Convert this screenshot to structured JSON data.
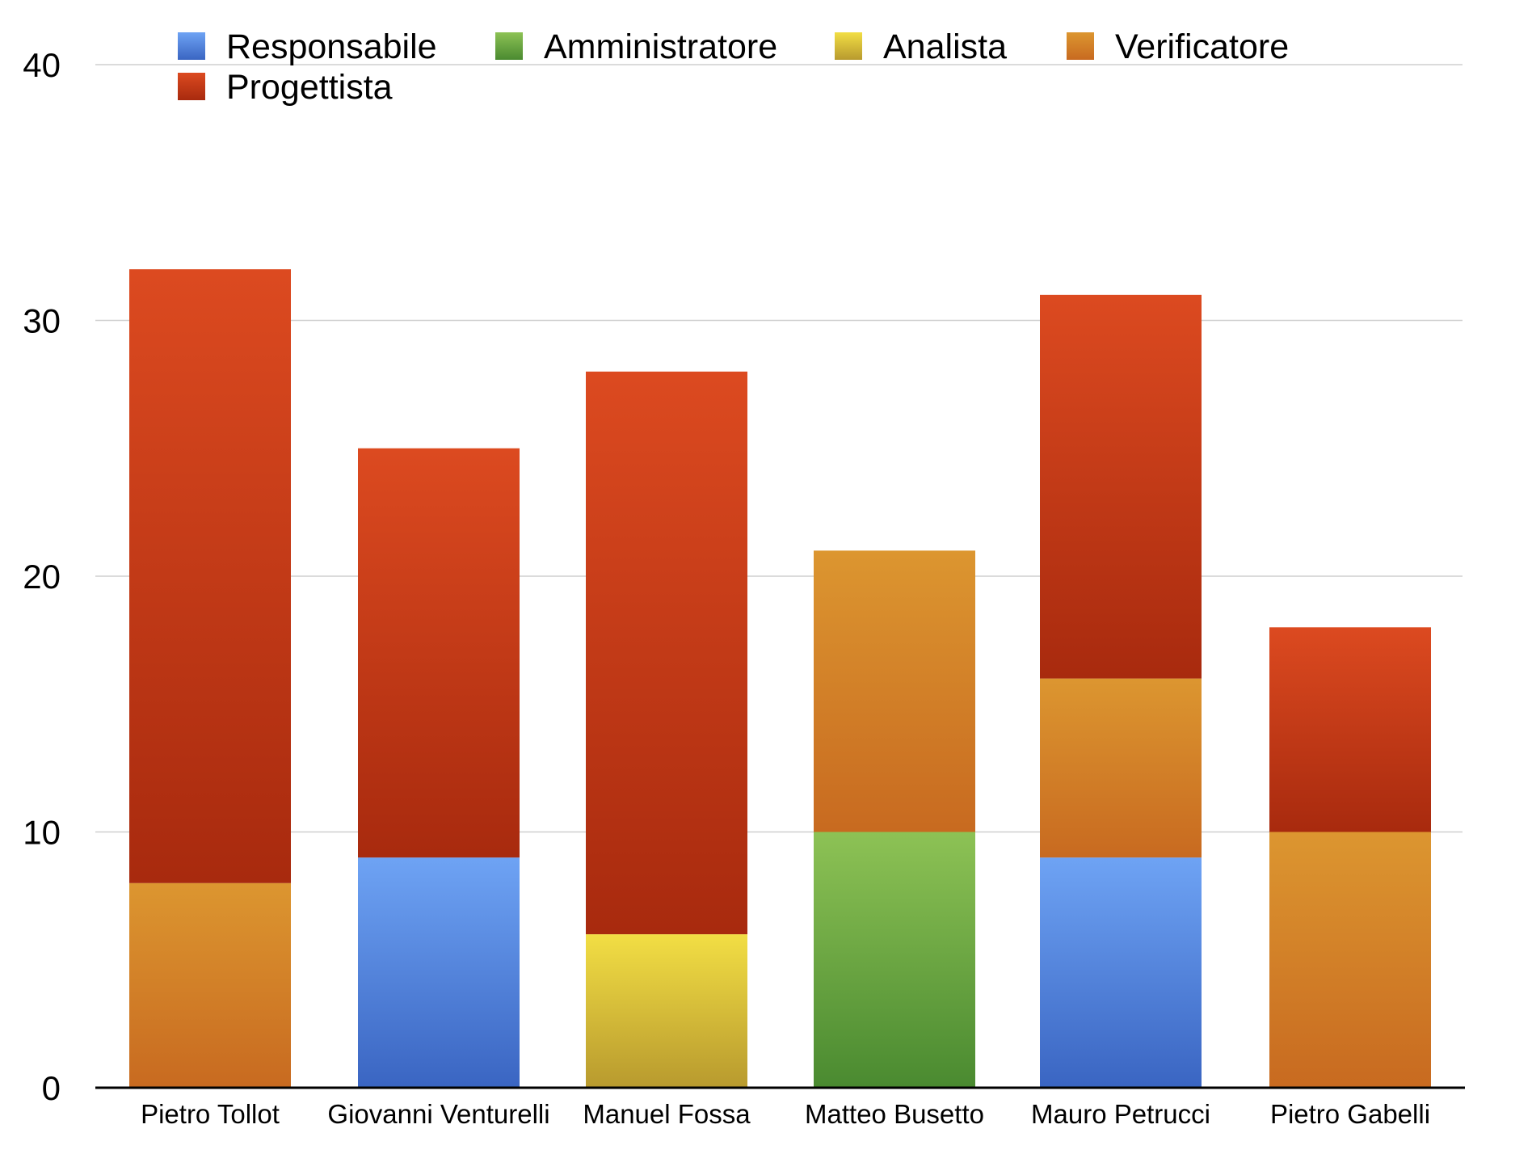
{
  "chart_data": {
    "type": "bar",
    "stacked": true,
    "title": "",
    "xlabel": "",
    "ylabel": "",
    "ylim": [
      0,
      40
    ],
    "yticks": [
      0,
      10,
      20,
      30,
      40
    ],
    "grid": true,
    "legend_position": "top-left",
    "categories": [
      "Pietro Tollot",
      "Giovanni Venturelli",
      "Manuel Fossa",
      "Matteo Busetto",
      "Mauro Petrucci",
      "Pietro Gabelli"
    ],
    "series": [
      {
        "name": "Responsabile",
        "color": "#4a7fd8",
        "values": [
          0,
          9,
          0,
          0,
          9,
          0
        ]
      },
      {
        "name": "Amministratore",
        "color": "#5ea33c",
        "values": [
          0,
          0,
          0,
          10,
          0,
          0
        ]
      },
      {
        "name": "Analista",
        "color": "#d9c02e",
        "values": [
          0,
          0,
          6,
          0,
          0,
          0
        ]
      },
      {
        "name": "Verificatore",
        "color": "#d4842a",
        "values": [
          8,
          0,
          0,
          11,
          7,
          10
        ]
      },
      {
        "name": "Progettista",
        "color": "#c83a16",
        "values": [
          24,
          16,
          22,
          0,
          15,
          8
        ]
      }
    ],
    "gradients": {
      "Responsabile": [
        "#6ea3f4",
        "#3a65c2"
      ],
      "Amministratore": [
        "#8dc255",
        "#4a8a30"
      ],
      "Analista": [
        "#f2de44",
        "#b89a2e"
      ],
      "Verificatore": [
        "#dc9630",
        "#c86a20"
      ],
      "Progettista": [
        "#dc4a20",
        "#a82a0e"
      ]
    }
  }
}
